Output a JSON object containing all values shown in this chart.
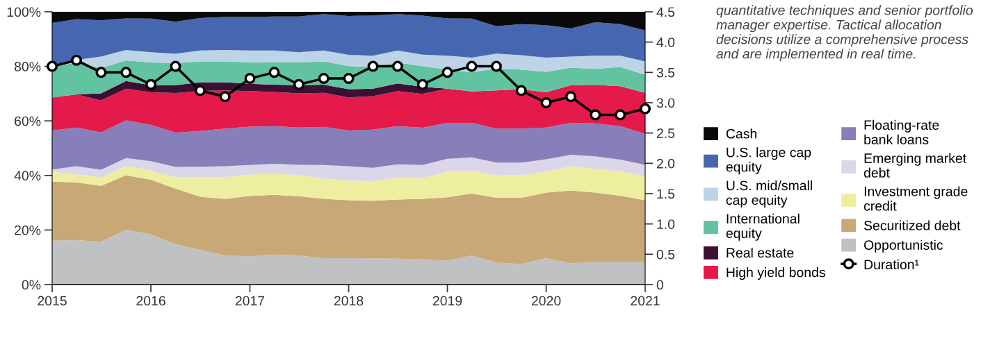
{
  "chart_data": {
    "type": "area",
    "stacked": true,
    "legend": "right",
    "grid": false,
    "x": [
      "2015-01",
      "2015-04",
      "2015-07",
      "2015-10",
      "2016-01",
      "2016-04",
      "2016-07",
      "2016-10",
      "2017-01",
      "2017-04",
      "2017-07",
      "2017-10",
      "2018-01",
      "2018-04",
      "2018-07",
      "2018-10",
      "2019-01",
      "2019-04",
      "2019-07",
      "2019-10",
      "2020-01",
      "2020-04",
      "2020-07",
      "2020-10",
      "2021-01"
    ],
    "xlim": [
      "2015-01",
      "2021-01"
    ],
    "xticks": [
      {
        "value": "2015-01",
        "label": "2015"
      },
      {
        "value": "2016-01",
        "label": "2016"
      },
      {
        "value": "2017-01",
        "label": "2017"
      },
      {
        "value": "2018-01",
        "label": "2018"
      },
      {
        "value": "2019-01",
        "label": "2019"
      },
      {
        "value": "2020-01",
        "label": "2020"
      },
      {
        "value": "2021-01",
        "label": "2021"
      }
    ],
    "ylim": [
      0,
      100
    ],
    "yticks": [
      {
        "value": 0,
        "label": "0%"
      },
      {
        "value": 20,
        "label": "20%"
      },
      {
        "value": 40,
        "label": "40%"
      },
      {
        "value": 60,
        "label": "60%"
      },
      {
        "value": 80,
        "label": "80%"
      },
      {
        "value": 100,
        "label": "100%"
      }
    ],
    "y2lim": [
      0,
      4.5
    ],
    "y2ticks": [
      0,
      0.5,
      {
        "value": 1.0,
        "label": "1.0"
      },
      1.5,
      {
        "value": 2.0,
        "label": "2.0"
      },
      2.5,
      {
        "value": 3.0,
        "label": "3.0"
      },
      3.5,
      {
        "value": 4.0,
        "label": "4.0"
      },
      4.5
    ],
    "series": [
      {
        "name": "Opportunistic",
        "color": "#c0c1c3",
        "values": [
          16.1,
          16.3,
          15.7,
          20.1,
          18.4,
          14.8,
          12.7,
          10.6,
          10.4,
          11.0,
          10.6,
          9.7,
          9.7,
          9.6,
          9.5,
          9.3,
          8.7,
          10.6,
          8.1,
          7.5,
          9.7,
          7.8,
          8.3,
          8.3,
          8.2
        ]
      },
      {
        "name": "Securitized debt",
        "color": "#c8a876",
        "values": [
          21.6,
          21.2,
          20.5,
          20.0,
          20.0,
          20.4,
          19.5,
          20.8,
          22.1,
          21.9,
          21.8,
          21.7,
          21.2,
          21.1,
          21.7,
          22.1,
          23.3,
          22.8,
          23.7,
          24.3,
          24.0,
          26.7,
          25.4,
          24.3,
          22.7
        ]
      },
      {
        "name": "Investment grade credit",
        "color": "#eeeea0",
        "values": [
          3.7,
          2.9,
          3.1,
          3.4,
          3.3,
          4.2,
          7.2,
          8.0,
          7.8,
          7.8,
          7.7,
          7.4,
          7.2,
          7.2,
          8.0,
          7.6,
          9.4,
          8.3,
          8.2,
          8.3,
          7.7,
          8.9,
          8.7,
          8.9,
          8.9
        ]
      },
      {
        "name": "Emerging market debt",
        "color": "#dcd6ea",
        "values": [
          0.8,
          3.0,
          2.8,
          2.9,
          3.5,
          3.7,
          3.8,
          4.0,
          3.5,
          3.6,
          3.8,
          5.0,
          5.3,
          4.9,
          4.9,
          4.8,
          4.7,
          4.9,
          4.7,
          4.6,
          4.5,
          4.2,
          4.6,
          4.3,
          4.1
        ]
      },
      {
        "name": "Floating-rate bank loans",
        "color": "#877fb9",
        "values": [
          14.3,
          14.2,
          13.7,
          13.8,
          13.3,
          12.6,
          13.1,
          13.8,
          14.1,
          13.8,
          13.7,
          14.0,
          13.1,
          14.0,
          14.0,
          13.7,
          13.2,
          12.7,
          12.5,
          12.5,
          11.7,
          11.7,
          12.1,
          12.3,
          11.4
        ]
      },
      {
        "name": "High yield bonds",
        "color": "#e31a4a",
        "values": [
          12.1,
          12.1,
          11.7,
          11.6,
          12.0,
          14.5,
          14.7,
          14.0,
          13.0,
          12.5,
          12.5,
          12.5,
          12.1,
          12.3,
          12.8,
          12.4,
          12.5,
          11.5,
          14.0,
          14.4,
          12.9,
          13.8,
          14.1,
          14.6,
          15.0
        ]
      },
      {
        "name": "Real estate",
        "color": "#3b1033",
        "values": [
          0,
          0,
          2.6,
          2.8,
          2.6,
          2.9,
          3.2,
          3.0,
          2.7,
          2.7,
          3.0,
          3.0,
          3.0,
          2.7,
          2.8,
          2.6,
          0,
          0,
          0,
          0,
          0,
          0,
          0,
          0,
          0
        ]
      },
      {
        "name": "International equity",
        "color": "#62c3a0",
        "values": [
          11.2,
          11.7,
          9.3,
          7.6,
          8.3,
          8.1,
          7.6,
          7.6,
          7.9,
          8.1,
          8.3,
          8.5,
          8.5,
          7.9,
          7.7,
          7.6,
          7.0,
          7.0,
          8.0,
          7.2,
          7.5,
          6.4,
          5.9,
          7.1,
          6.6
        ]
      },
      {
        "name": "U.S. mid/small cap equity",
        "color": "#bcd3e8",
        "values": [
          0,
          1.0,
          4.2,
          3.8,
          3.8,
          3.4,
          4.0,
          4.2,
          4.3,
          4.4,
          3.8,
          4.0,
          4.1,
          4.2,
          4.4,
          4.2,
          5.1,
          5.4,
          5.5,
          5.3,
          5.2,
          4.1,
          4.8,
          4.1,
          4.9
        ]
      },
      {
        "name": "U.S. large cap equity",
        "color": "#4667b0",
        "values": [
          16.1,
          14.9,
          13.3,
          11.6,
          12.3,
          11.8,
          11.9,
          12.1,
          12.3,
          12.5,
          13.1,
          13.4,
          14.3,
          14.7,
          13.4,
          14.3,
          13.7,
          14.3,
          10.0,
          11.4,
          11.9,
          10.3,
          12.3,
          11.6,
          11.4
        ]
      },
      {
        "name": "Cash",
        "color": "#0a0a0a",
        "values": [
          4.1,
          2.7,
          3.1,
          2.4,
          2.5,
          3.6,
          2.3,
          1.9,
          1.9,
          1.7,
          1.7,
          0.8,
          1.5,
          1.4,
          0.8,
          1.4,
          2.4,
          2.5,
          5.3,
          4.5,
          4.9,
          6.1,
          3.8,
          4.5,
          6.8
        ]
      },
      {
        "name": "Duration¹",
        "type": "line",
        "axis": "y2",
        "color": "#000000",
        "marker": "circle",
        "line_style": "solid",
        "values": [
          3.6,
          3.7,
          3.5,
          3.5,
          3.3,
          3.6,
          3.2,
          3.1,
          3.4,
          3.5,
          3.3,
          3.4,
          3.4,
          3.6,
          3.6,
          3.3,
          3.5,
          3.6,
          3.6,
          3.2,
          3.0,
          3.1,
          2.8,
          2.8,
          2.9
        ]
      }
    ],
    "annotations": [
      "quantitative techniques and senior portfolio manager expertise. Tactical allocation decisions utilize a comprehensive process and are implemented in real time."
    ]
  }
}
